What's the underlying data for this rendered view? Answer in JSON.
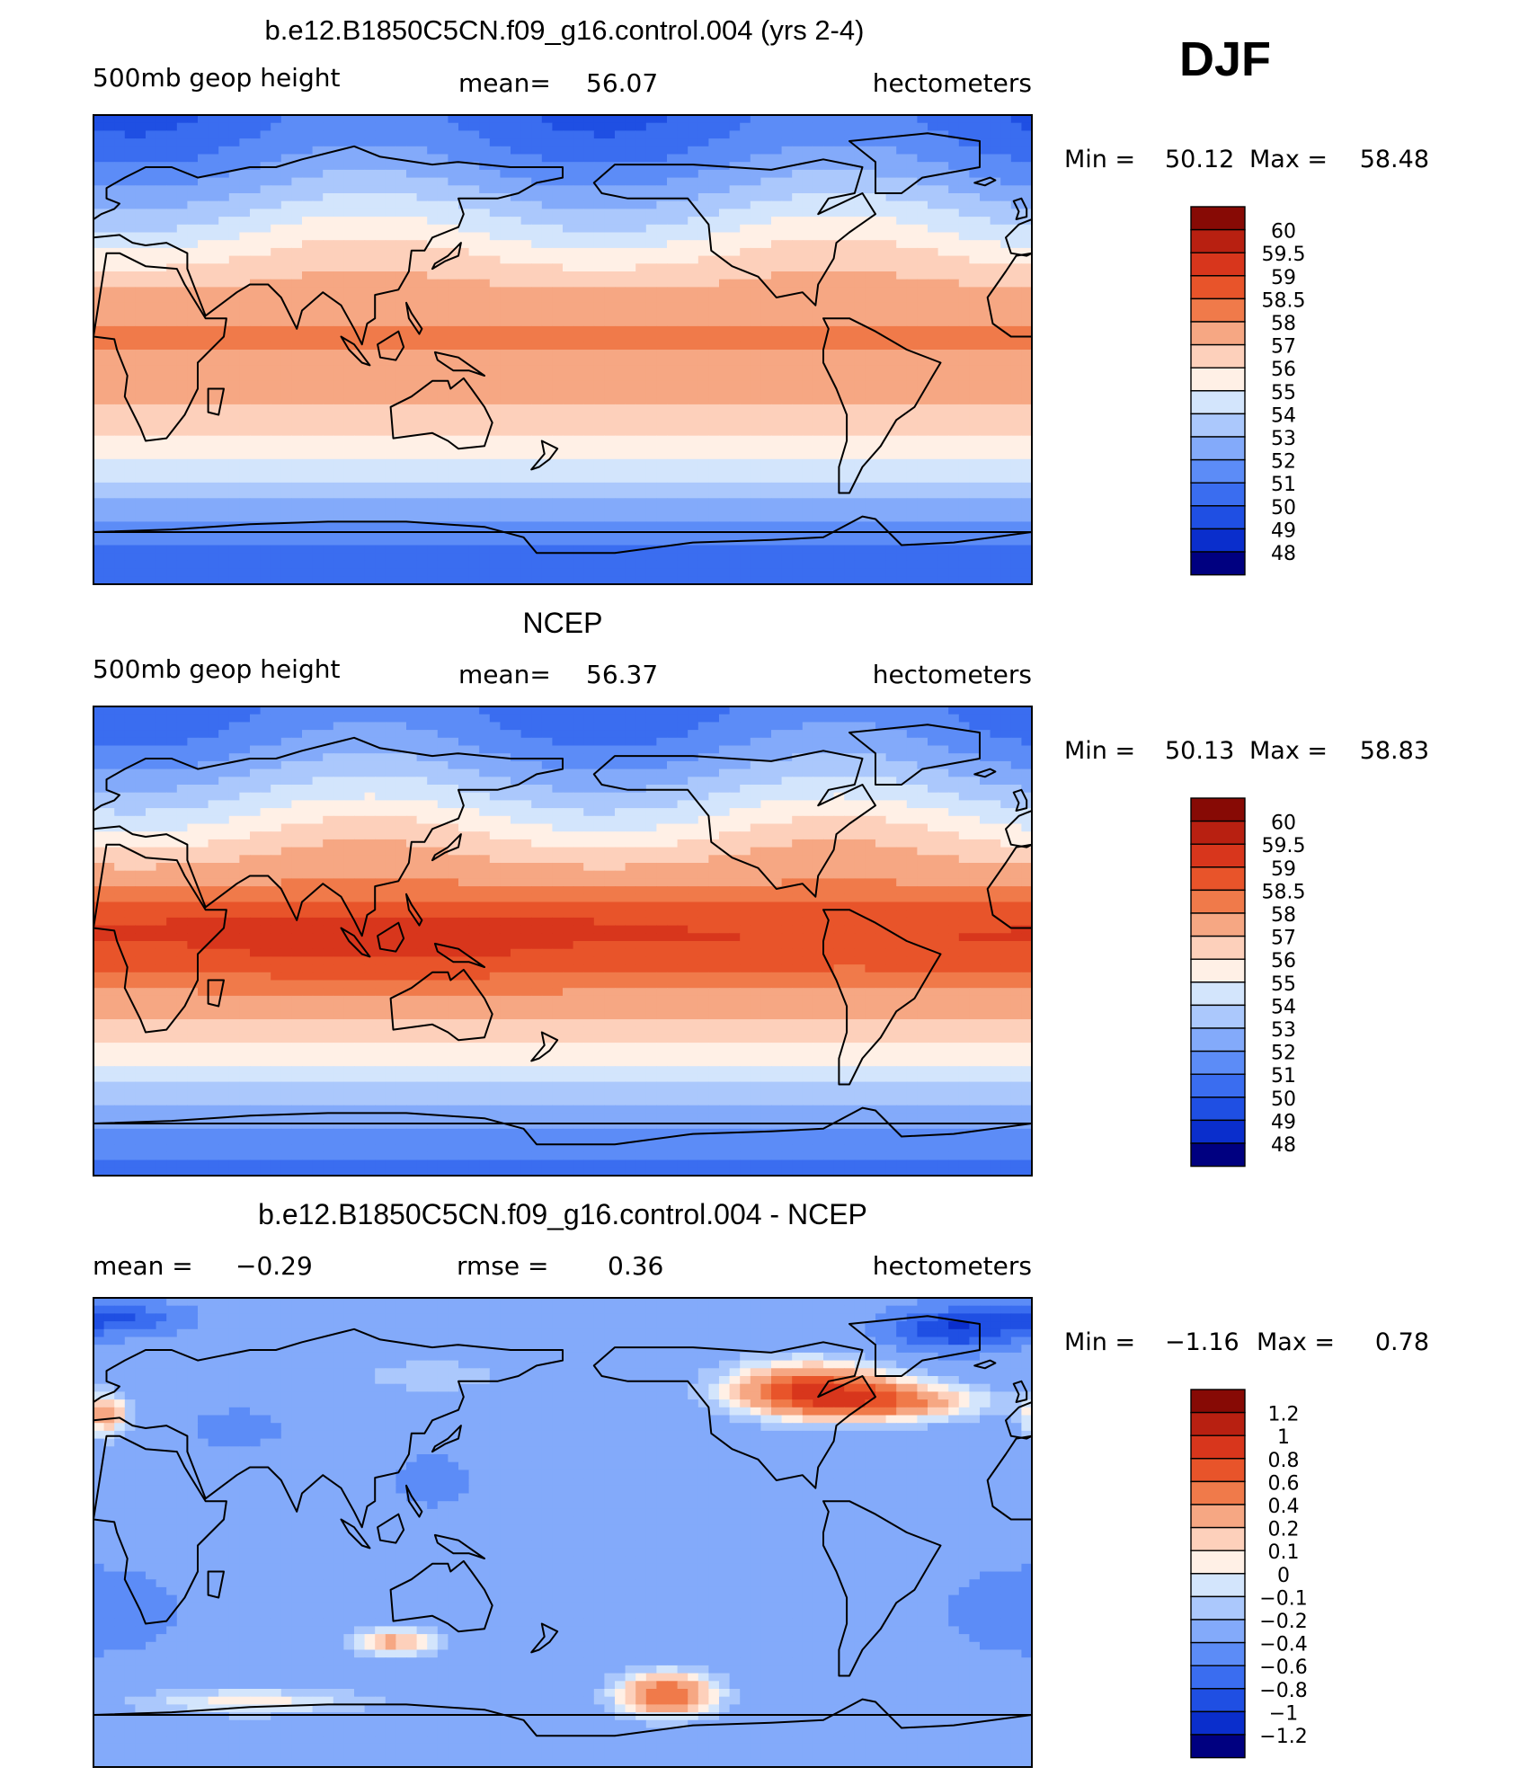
{
  "season_label": "DJF",
  "colors": {
    "default": [
      "#000080",
      "#0A2ECC",
      "#1F4FE3",
      "#3A6DF0",
      "#5C8CF7",
      "#83AAFA",
      "#ABC8FC",
      "#D3E5FC",
      "#FFF0E6",
      "#FDD0BB",
      "#F6A783",
      "#F07A4A",
      "#E8542A",
      "#D8361C",
      "#B82011",
      "#870A05"
    ],
    "difference": [
      "#000080",
      "#0A2ECC",
      "#1F4FE3",
      "#3A6DF0",
      "#5C8CF7",
      "#83AAFA",
      "#ABC8FC",
      "#D3E5FC",
      "#FFF0E6",
      "#FDD0BB",
      "#F6A783",
      "#F07A4A",
      "#E8542A",
      "#D8361C",
      "#B82011",
      "#870A05"
    ],
    "coast": "#000000"
  },
  "chart_data": [
    {
      "type": "heatmap",
      "title": "b.e12.B1850C5CN.f09_g16.control.004 (yrs 2-4)",
      "left_label": "500mb geop height",
      "center_label": "mean=",
      "center_value": "56.07",
      "right_label": "hectometers",
      "min_label": "Min =",
      "min_value": "50.12",
      "max_label": "Max =",
      "max_value": "58.48",
      "colorbar_labels": [
        "60",
        "59.5",
        "59",
        "58.5",
        "58",
        "57",
        "56",
        "55",
        "54",
        "53",
        "52",
        "51",
        "50",
        "49",
        "48"
      ],
      "levels": [
        48,
        49,
        50,
        51,
        52,
        53,
        54,
        55,
        56,
        57,
        58,
        58.5,
        59,
        59.5,
        60
      ],
      "x_range": [
        0,
        360
      ],
      "y_range": [
        -90,
        90
      ],
      "field": {
        "base": 50.6,
        "amp": 7.55,
        "south_offset": 0.35,
        "jet_lat": 60,
        "tropical_bulge": 0.0,
        "anomalies": []
      }
    },
    {
      "type": "heatmap",
      "title": "NCEP",
      "left_label": "500mb geop height",
      "center_label": "mean=",
      "center_value": "56.37",
      "right_label": "hectometers",
      "min_label": "Min =",
      "min_value": "50.13",
      "max_label": "Max =",
      "max_value": "58.83",
      "colorbar_labels": [
        "60",
        "59.5",
        "59",
        "58.5",
        "58",
        "57",
        "56",
        "55",
        "54",
        "53",
        "52",
        "51",
        "50",
        "49",
        "48"
      ],
      "levels": [
        48,
        49,
        50,
        51,
        52,
        53,
        54,
        55,
        56,
        57,
        58,
        58.5,
        59,
        59.5,
        60
      ],
      "x_range": [
        0,
        360
      ],
      "y_range": [
        -90,
        90
      ],
      "field": {
        "base": 50.9,
        "amp": 7.95,
        "south_offset": 0.2,
        "jet_lat": 60,
        "tropical_bulge": 0.5,
        "anomalies": []
      }
    },
    {
      "type": "heatmap",
      "title": "b.e12.B1850C5CN.f09_g16.control.004 - NCEP",
      "left_label": "mean =",
      "left_value": "−0.29",
      "center_label": "rmse =",
      "center_value": "0.36",
      "right_label": "hectometers",
      "min_label": "Min =",
      "min_value": "−1.16",
      "max_label": "Max =",
      "max_value": "0.78",
      "colorbar_labels": [
        "1.2",
        "1",
        "0.8",
        "0.6",
        "0.4",
        "0.2",
        "0.1",
        "0",
        "−0.1",
        "−0.2",
        "−0.4",
        "−0.6",
        "−0.8",
        "−1",
        "−1.2"
      ],
      "levels": [
        -1.2,
        -1,
        -0.8,
        -0.6,
        -0.4,
        -0.2,
        -0.1,
        0,
        0.1,
        0.2,
        0.4,
        0.6,
        0.8,
        1,
        1.2
      ],
      "x_range": [
        0,
        360
      ],
      "y_range": [
        -90,
        90
      ],
      "field": {
        "base": -0.3,
        "amp": 0,
        "anomalies": [
          {
            "lon": 275,
            "lat": 55,
            "value": 1.0,
            "dlon": 30,
            "dlat": 10
          },
          {
            "lon": 305,
            "lat": 50,
            "value": 0.7,
            "dlon": 35,
            "dlat": 7
          },
          {
            "lon": 220,
            "lat": -62,
            "value": 0.9,
            "dlon": 18,
            "dlat": 8
          },
          {
            "lon": 115,
            "lat": -42,
            "value": 0.55,
            "dlon": 16,
            "dlat": 5
          },
          {
            "lon": 60,
            "lat": -65,
            "value": 0.35,
            "dlon": 45,
            "dlat": 5
          },
          {
            "lon": 5,
            "lat": 45,
            "value": 0.6,
            "dlon": 8,
            "dlat": 8
          },
          {
            "lon": 330,
            "lat": 78,
            "value": -0.7,
            "dlon": 25,
            "dlat": 8
          },
          {
            "lon": 10,
            "lat": 82,
            "value": -0.5,
            "dlon": 25,
            "dlat": 6
          },
          {
            "lon": 130,
            "lat": 20,
            "value": -0.25,
            "dlon": 15,
            "dlat": 10
          },
          {
            "lon": 55,
            "lat": 40,
            "value": -0.2,
            "dlon": 20,
            "dlat": 8
          },
          {
            "lon": 130,
            "lat": 60,
            "value": 0.2,
            "dlon": 30,
            "dlat": 6
          },
          {
            "lon": 0,
            "lat": -30,
            "value": -0.2,
            "dlon": 40,
            "dlat": 20
          }
        ]
      }
    }
  ],
  "coastlines": [
    {
      "name": "n-america",
      "points": [
        [
          192,
          64
        ],
        [
          200,
          71
        ],
        [
          230,
          71
        ],
        [
          260,
          69
        ],
        [
          280,
          73
        ],
        [
          295,
          70
        ],
        [
          292,
          60
        ],
        [
          282,
          58
        ],
        [
          278,
          52
        ],
        [
          295,
          60
        ],
        [
          300,
          52
        ],
        [
          290,
          45
        ],
        [
          285,
          41
        ],
        [
          284,
          35
        ],
        [
          281,
          30
        ],
        [
          278,
          25
        ],
        [
          277,
          17
        ],
        [
          272,
          22
        ],
        [
          262,
          20
        ],
        [
          255,
          28
        ],
        [
          245,
          32
        ],
        [
          237,
          38
        ],
        [
          236,
          48
        ],
        [
          228,
          58
        ],
        [
          205,
          58
        ],
        [
          195,
          60
        ]
      ]
    },
    {
      "name": "s-america",
      "points": [
        [
          280,
          12
        ],
        [
          290,
          12
        ],
        [
          300,
          7
        ],
        [
          312,
          0
        ],
        [
          325,
          -5
        ],
        [
          322,
          -10
        ],
        [
          315,
          -22
        ],
        [
          308,
          -27
        ],
        [
          302,
          -37
        ],
        [
          295,
          -45
        ],
        [
          290,
          -55
        ],
        [
          286,
          -55
        ],
        [
          286,
          -45
        ],
        [
          289,
          -35
        ],
        [
          289,
          -25
        ],
        [
          285,
          -15
        ],
        [
          280,
          -5
        ],
        [
          280,
          0
        ],
        [
          282,
          8
        ]
      ]
    },
    {
      "name": "africa",
      "points": [
        [
          5,
          37
        ],
        [
          10,
          37
        ],
        [
          20,
          32
        ],
        [
          32,
          31
        ],
        [
          35,
          25
        ],
        [
          43,
          12
        ],
        [
          51,
          12
        ],
        [
          50,
          5
        ],
        [
          40,
          -5
        ],
        [
          40,
          -15
        ],
        [
          35,
          -25
        ],
        [
          28,
          -34
        ],
        [
          20,
          -35
        ],
        [
          18,
          -30
        ],
        [
          12,
          -18
        ],
        [
          13,
          -10
        ],
        [
          9,
          0
        ],
        [
          8,
          4
        ],
        [
          0,
          5
        ]
      ]
    },
    {
      "name": "africa-w",
      "points": [
        [
          360,
          5
        ],
        [
          352,
          5
        ],
        [
          345,
          10
        ],
        [
          343,
          20
        ],
        [
          350,
          30
        ],
        [
          354,
          36
        ],
        [
          360,
          37
        ]
      ]
    },
    {
      "name": "eurasia",
      "points": [
        [
          0,
          43
        ],
        [
          10,
          44
        ],
        [
          15,
          41
        ],
        [
          20,
          40
        ],
        [
          28,
          41
        ],
        [
          36,
          37
        ],
        [
          36,
          31
        ],
        [
          43,
          13
        ],
        [
          55,
          22
        ],
        [
          60,
          25
        ],
        [
          67,
          25
        ],
        [
          72,
          20
        ],
        [
          78,
          8
        ],
        [
          80,
          15
        ],
        [
          88,
          22
        ],
        [
          95,
          17
        ],
        [
          100,
          8
        ],
        [
          103,
          2
        ],
        [
          105,
          10
        ],
        [
          108,
          12
        ],
        [
          108,
          21
        ],
        [
          117,
          23
        ],
        [
          121,
          30
        ],
        [
          122,
          38
        ],
        [
          127,
          38
        ],
        [
          130,
          43
        ],
        [
          140,
          47
        ],
        [
          142,
          52
        ],
        [
          140,
          58
        ],
        [
          155,
          58
        ],
        [
          163,
          60
        ],
        [
          170,
          64
        ],
        [
          180,
          66
        ],
        [
          180,
          70
        ],
        [
          160,
          70
        ],
        [
          140,
          72
        ],
        [
          130,
          71
        ],
        [
          110,
          74
        ],
        [
          100,
          78
        ],
        [
          80,
          73
        ],
        [
          70,
          70
        ],
        [
          60,
          70
        ],
        [
          50,
          68
        ],
        [
          40,
          66
        ],
        [
          30,
          70
        ],
        [
          20,
          70
        ],
        [
          12,
          66
        ],
        [
          5,
          62
        ],
        [
          5,
          58
        ],
        [
          10,
          56
        ],
        [
          8,
          54
        ],
        [
          3,
          52
        ],
        [
          0,
          50
        ]
      ]
    },
    {
      "name": "eurasia-w",
      "points": [
        [
          360,
          50
        ],
        [
          355,
          48
        ],
        [
          350,
          43
        ],
        [
          352,
          37
        ],
        [
          358,
          36
        ],
        [
          360,
          37
        ]
      ]
    },
    {
      "name": "australia",
      "points": [
        [
          114,
          -22
        ],
        [
          122,
          -18
        ],
        [
          130,
          -12
        ],
        [
          136,
          -12
        ],
        [
          137,
          -15
        ],
        [
          142,
          -11
        ],
        [
          145,
          -15
        ],
        [
          150,
          -22
        ],
        [
          153,
          -28
        ],
        [
          150,
          -37
        ],
        [
          140,
          -38
        ],
        [
          136,
          -35
        ],
        [
          130,
          -32
        ],
        [
          115,
          -34
        ]
      ]
    },
    {
      "name": "greenland",
      "points": [
        [
          300,
          60
        ],
        [
          310,
          60
        ],
        [
          318,
          66
        ],
        [
          340,
          70
        ],
        [
          340,
          80
        ],
        [
          320,
          83
        ],
        [
          290,
          80
        ],
        [
          295,
          76
        ],
        [
          300,
          72
        ]
      ]
    },
    {
      "name": "antarctica",
      "points": [
        [
          0,
          -70
        ],
        [
          30,
          -69
        ],
        [
          60,
          -67
        ],
        [
          90,
          -66
        ],
        [
          120,
          -66
        ],
        [
          150,
          -68
        ],
        [
          165,
          -72
        ],
        [
          170,
          -78
        ],
        [
          200,
          -78
        ],
        [
          230,
          -74
        ],
        [
          260,
          -73
        ],
        [
          280,
          -72
        ],
        [
          295,
          -64
        ],
        [
          300,
          -65
        ],
        [
          310,
          -75
        ],
        [
          330,
          -74
        ],
        [
          360,
          -70
        ]
      ]
    },
    {
      "name": "japan",
      "points": [
        [
          130,
          31
        ],
        [
          135,
          34
        ],
        [
          140,
          36
        ],
        [
          141,
          41
        ],
        [
          140,
          40
        ],
        [
          136,
          36
        ],
        [
          131,
          33
        ]
      ]
    },
    {
      "name": "uk",
      "points": [
        [
          354,
          50
        ],
        [
          358,
          51
        ],
        [
          358,
          54
        ],
        [
          356,
          58
        ],
        [
          353,
          57
        ],
        [
          355,
          53
        ]
      ]
    },
    {
      "name": "madagascar",
      "points": [
        [
          44,
          -15
        ],
        [
          50,
          -15
        ],
        [
          48,
          -25
        ],
        [
          44,
          -24
        ]
      ]
    },
    {
      "name": "new-zealand",
      "points": [
        [
          172,
          -35
        ],
        [
          178,
          -38
        ],
        [
          175,
          -42
        ],
        [
          171,
          -45
        ],
        [
          168,
          -46
        ],
        [
          173,
          -40
        ]
      ]
    },
    {
      "name": "borneo",
      "points": [
        [
          109,
          2
        ],
        [
          117,
          7
        ],
        [
          119,
          1
        ],
        [
          116,
          -4
        ],
        [
          110,
          -3
        ]
      ]
    },
    {
      "name": "sumatra",
      "points": [
        [
          95,
          5
        ],
        [
          100,
          2
        ],
        [
          106,
          -6
        ],
        [
          103,
          -5
        ],
        [
          98,
          0
        ]
      ]
    },
    {
      "name": "new-guinea",
      "points": [
        [
          131,
          -1
        ],
        [
          140,
          -3
        ],
        [
          150,
          -10
        ],
        [
          144,
          -8
        ],
        [
          138,
          -8
        ],
        [
          132,
          -4
        ]
      ]
    },
    {
      "name": "philippines",
      "points": [
        [
          120,
          18
        ],
        [
          122,
          14
        ],
        [
          126,
          8
        ],
        [
          125,
          6
        ],
        [
          121,
          12
        ]
      ]
    },
    {
      "name": "iceland",
      "points": [
        [
          338,
          64
        ],
        [
          344,
          66
        ],
        [
          346,
          65
        ],
        [
          342,
          63
        ]
      ]
    }
  ]
}
